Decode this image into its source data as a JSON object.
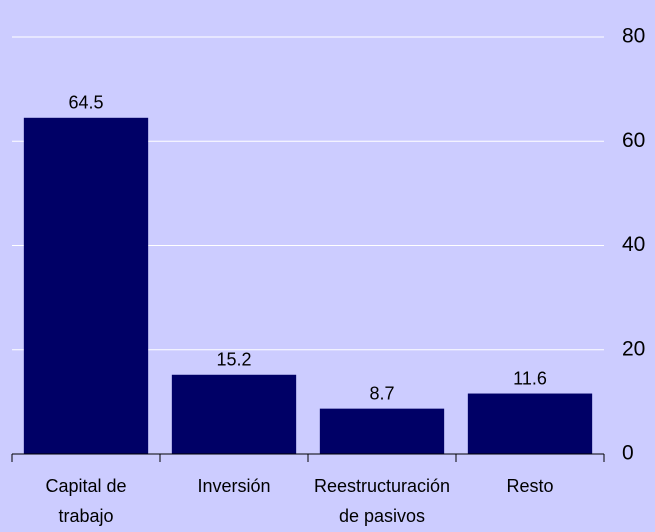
{
  "chart_data": {
    "type": "bar",
    "categories": [
      [
        "Capital de",
        "trabajo"
      ],
      [
        "Inversión"
      ],
      [
        "Reestructuración",
        "de pasivos"
      ],
      [
        "Resto"
      ]
    ],
    "values": [
      64.5,
      15.2,
      8.7,
      11.6
    ],
    "color": "#000066",
    "ylim": [
      0,
      80
    ],
    "yticks": [
      0,
      20,
      40,
      60,
      80
    ],
    "grid": true
  }
}
